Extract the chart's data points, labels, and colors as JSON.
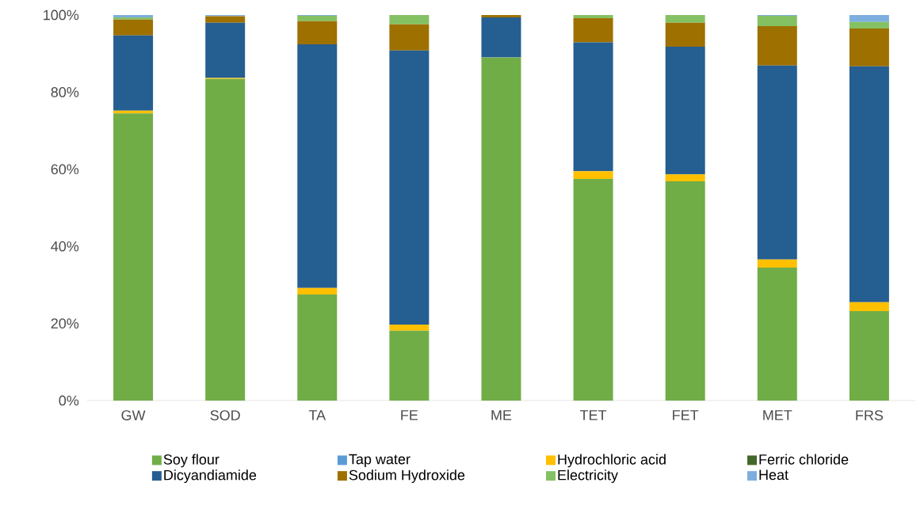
{
  "chart_data": {
    "type": "bar",
    "stacked": true,
    "categories": [
      "GW",
      "SOD",
      "TA",
      "FE",
      "ME",
      "TET",
      "FET",
      "MET",
      "FRS"
    ],
    "series": [
      {
        "name": "Soy flour",
        "color": "#70ad47",
        "values": [
          74.5,
          83.4,
          27.5,
          18.1,
          89.0,
          57.5,
          56.9,
          34.5,
          23.2
        ]
      },
      {
        "name": "Tap water",
        "color": "#5b9bd5",
        "values": [
          0,
          0,
          0,
          0,
          0,
          0,
          0,
          0,
          0
        ]
      },
      {
        "name": "Hydrochloric acid",
        "color": "#ffc000",
        "values": [
          0.7,
          0.3,
          1.7,
          1.6,
          0,
          2.0,
          1.8,
          2.1,
          2.3
        ]
      },
      {
        "name": "Ferric chloride",
        "color": "#43682b",
        "values": [
          0,
          0,
          0,
          0,
          0,
          0,
          0,
          0,
          0
        ]
      },
      {
        "name": "Dicyandiamide",
        "color": "#255e91",
        "values": [
          19.5,
          14.3,
          63.2,
          71.1,
          10.4,
          33.4,
          33.1,
          50.3,
          61.2
        ]
      },
      {
        "name": "Sodium Hydroxide",
        "color": "#9e7000",
        "values": [
          4.1,
          1.7,
          6.0,
          6.8,
          0.6,
          6.3,
          6.2,
          10.2,
          9.8
        ]
      },
      {
        "name": "Electricity",
        "color": "#84c163",
        "values": [
          0.6,
          0,
          1.4,
          2.4,
          0,
          0.8,
          2.0,
          2.7,
          1.7
        ]
      },
      {
        "name": "Heat",
        "color": "#7cafdd",
        "values": [
          0.6,
          0.3,
          0.2,
          0,
          0,
          0,
          0,
          0.2,
          1.8
        ]
      }
    ],
    "ylim": [
      0,
      100
    ],
    "yticks": [
      {
        "value": 0,
        "label": "0%"
      },
      {
        "value": 20,
        "label": "20%"
      },
      {
        "value": 40,
        "label": "40%"
      },
      {
        "value": 60,
        "label": "60%"
      },
      {
        "value": 80,
        "label": "80%"
      },
      {
        "value": 100,
        "label": "100%"
      }
    ],
    "legend": "bottom"
  }
}
